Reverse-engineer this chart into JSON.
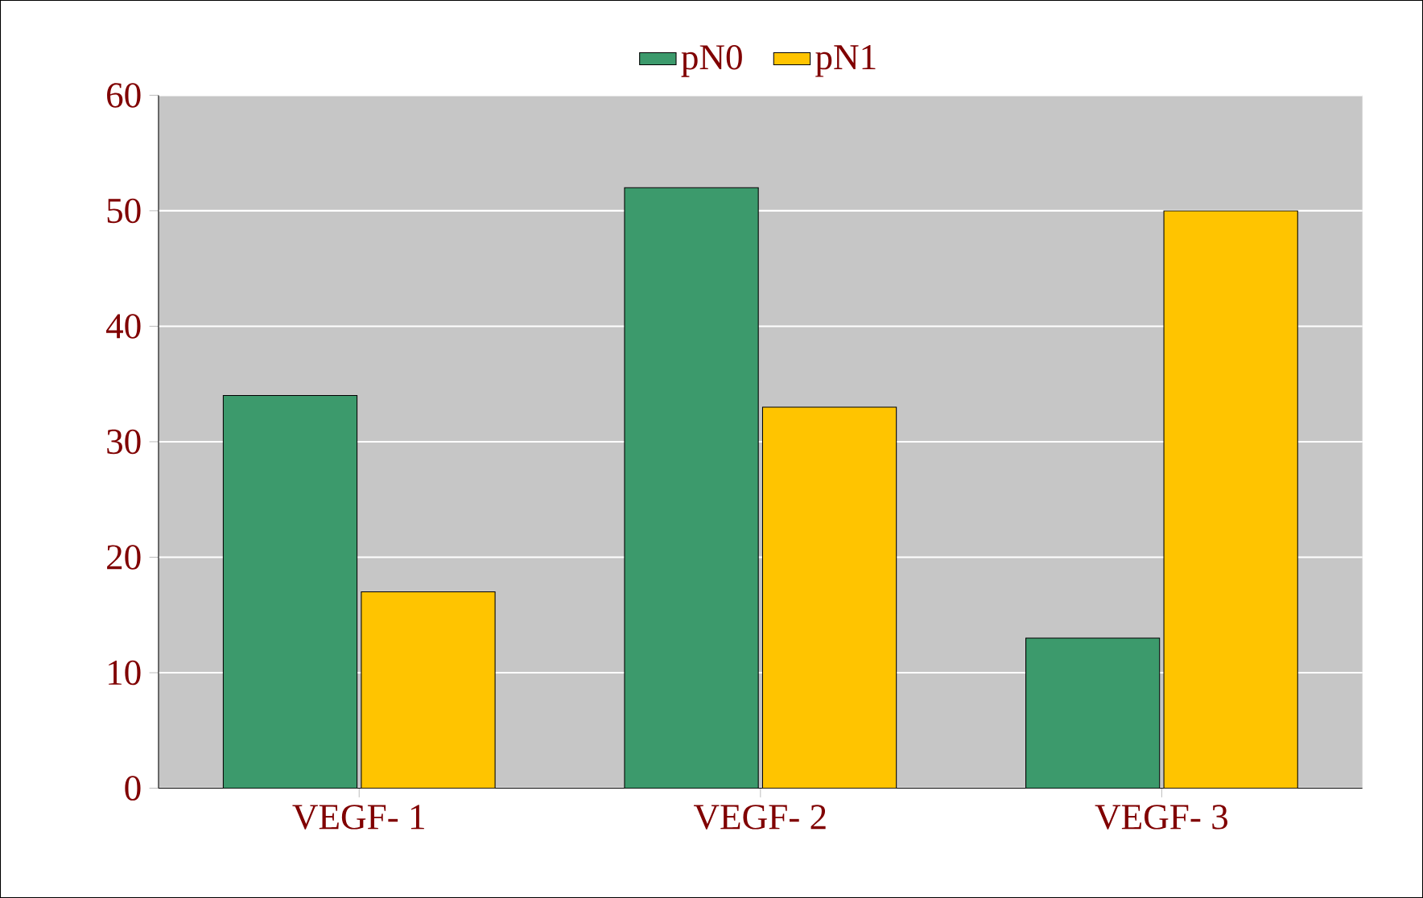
{
  "chart_data": {
    "type": "bar",
    "categories": [
      "VEGF- 1",
      "VEGF- 2",
      "VEGF- 3"
    ],
    "series": [
      {
        "name": "pN0",
        "color": "#3c9a6c",
        "values": [
          34,
          52,
          13
        ]
      },
      {
        "name": "pN1",
        "color": "#ffc400",
        "values": [
          17,
          33,
          50
        ]
      }
    ],
    "ylim": [
      0,
      60
    ],
    "yticks": [
      0,
      10,
      20,
      30,
      40,
      50,
      60
    ],
    "grid": "y",
    "legend": "top"
  }
}
